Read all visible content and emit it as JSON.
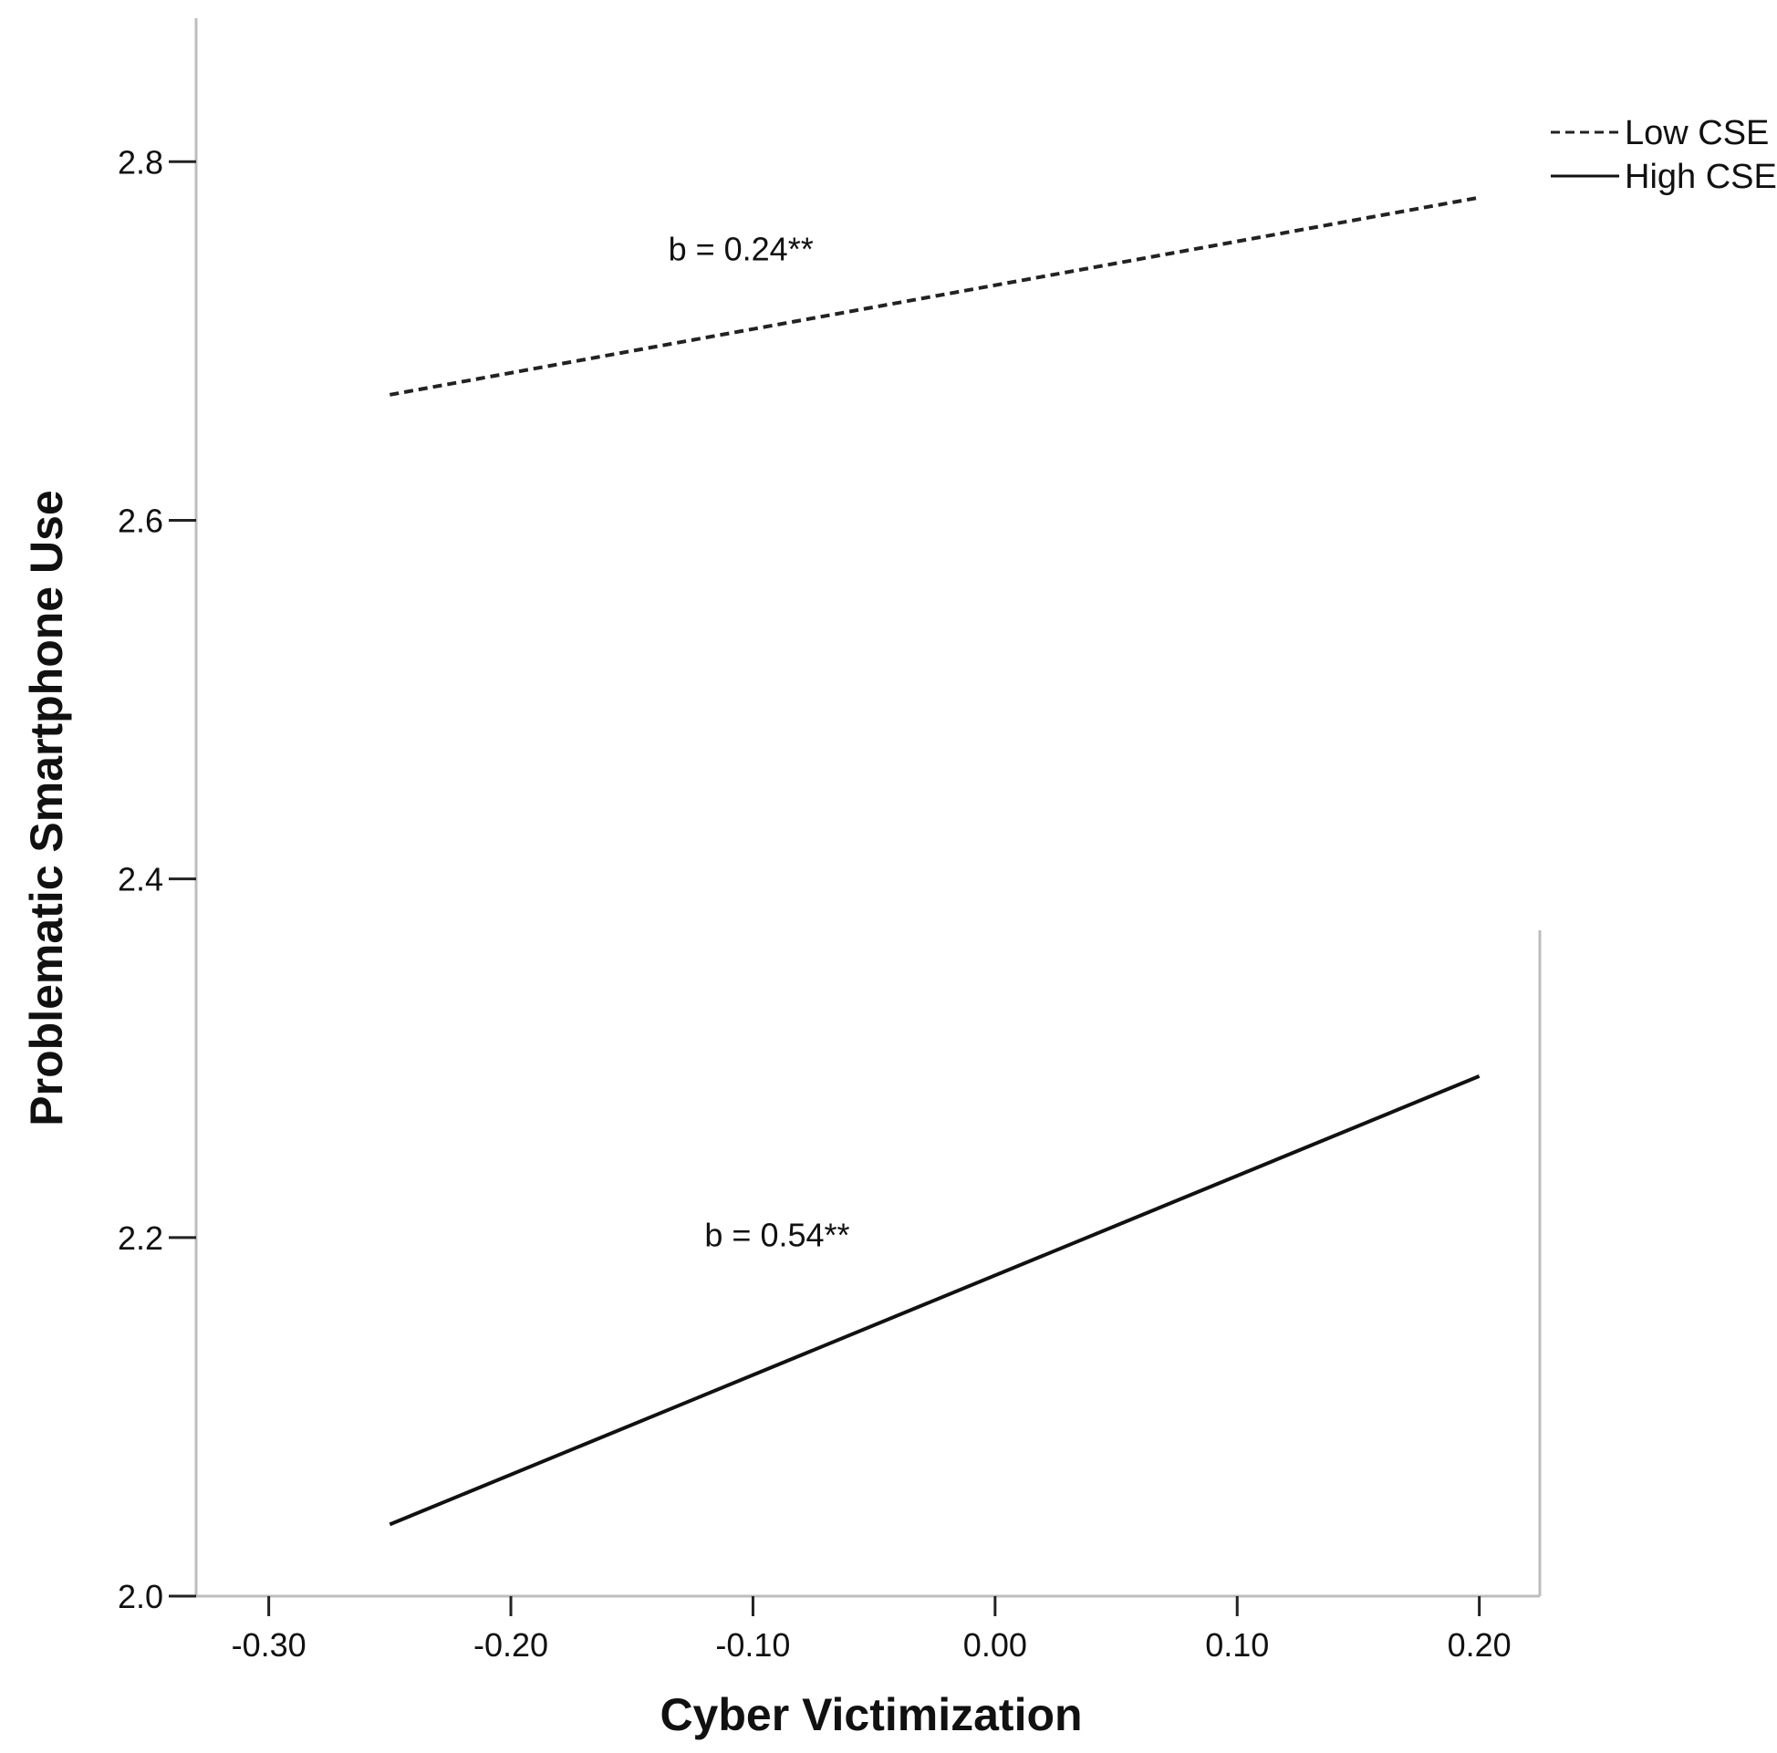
{
  "chart_data": {
    "type": "line",
    "title": "",
    "xlabel": "Cyber Victimization",
    "ylabel": "Problematic Smartphone Use",
    "xlim": [
      -0.33,
      0.225
    ],
    "ylim": [
      2.0,
      2.88
    ],
    "xticks": [
      -0.3,
      -0.2,
      -0.1,
      0.0,
      0.1,
      0.2
    ],
    "xtick_labels": [
      "-0.30",
      "-0.20",
      "-0.10",
      "0.00",
      "0.10",
      "0.20"
    ],
    "yticks": [
      2.0,
      2.2,
      2.4,
      2.6,
      2.8
    ],
    "ytick_labels": [
      "2.0",
      "2.2",
      "2.4",
      "2.6",
      "2.8"
    ],
    "grid": false,
    "legend_position": "top-right",
    "series": [
      {
        "name": "Low CSE",
        "style": "dashed",
        "color": "#222222",
        "x": [
          -0.25,
          0.2
        ],
        "y": [
          2.67,
          2.78
        ]
      },
      {
        "name": "High CSE",
        "style": "solid",
        "color": "#111111",
        "x": [
          -0.25,
          0.2
        ],
        "y": [
          2.04,
          2.29
        ]
      }
    ],
    "annotations": [
      {
        "text": "b = 0.24**",
        "x": -0.105,
        "y": 2.745
      },
      {
        "text": "b = 0.54**",
        "x": -0.09,
        "y": 2.195
      }
    ]
  }
}
